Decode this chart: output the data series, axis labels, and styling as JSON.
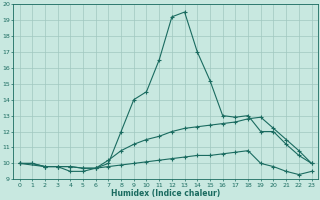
{
  "xlabel": "Humidex (Indice chaleur)",
  "bg_color": "#c8e8e0",
  "grid_color": "#a0c8c0",
  "line_color": "#1a6b60",
  "xlim": [
    -0.5,
    23.5
  ],
  "ylim": [
    9,
    20
  ],
  "xticks": [
    0,
    1,
    2,
    3,
    4,
    5,
    6,
    7,
    8,
    9,
    10,
    11,
    12,
    13,
    14,
    15,
    16,
    17,
    18,
    19,
    20,
    21,
    22,
    23
  ],
  "yticks": [
    9,
    10,
    11,
    12,
    13,
    14,
    15,
    16,
    17,
    18,
    19,
    20
  ],
  "line1_x": [
    0,
    1,
    2,
    3,
    4,
    5,
    6,
    7,
    8,
    9,
    10,
    11,
    12,
    13,
    14,
    15,
    16,
    17,
    18,
    19,
    20,
    21,
    22,
    23
  ],
  "line1_y": [
    10,
    10,
    9.8,
    9.8,
    9.5,
    9.5,
    9.7,
    10.0,
    12.0,
    14.0,
    14.5,
    16.5,
    19.2,
    19.5,
    17.0,
    15.2,
    13.0,
    12.9,
    13.0,
    12.0,
    12.0,
    11.2,
    10.5,
    10.0
  ],
  "line2_x": [
    0,
    2,
    3,
    4,
    5,
    6,
    7,
    8,
    9,
    10,
    11,
    12,
    13,
    14,
    15,
    16,
    17,
    18,
    19,
    20,
    21,
    22,
    23
  ],
  "line2_y": [
    10,
    9.8,
    9.8,
    9.8,
    9.7,
    9.7,
    10.2,
    10.8,
    11.2,
    11.5,
    11.7,
    12.0,
    12.2,
    12.3,
    12.4,
    12.5,
    12.6,
    12.8,
    12.9,
    12.2,
    11.5,
    10.8,
    10.0
  ],
  "line3_x": [
    0,
    1,
    2,
    3,
    4,
    5,
    6,
    7,
    8,
    9,
    10,
    11,
    12,
    13,
    14,
    15,
    16,
    17,
    18,
    19,
    20,
    21,
    22,
    23
  ],
  "line3_y": [
    10,
    10,
    9.8,
    9.8,
    9.8,
    9.7,
    9.7,
    9.8,
    9.9,
    10.0,
    10.1,
    10.2,
    10.3,
    10.4,
    10.5,
    10.5,
    10.6,
    10.7,
    10.8,
    10.0,
    9.8,
    9.5,
    9.3,
    9.5
  ]
}
